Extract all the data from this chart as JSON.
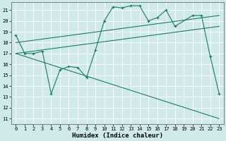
{
  "xlabel": "Humidex (Indice chaleur)",
  "bg_color": "#d0eaea",
  "grid_color": "#ffffff",
  "line_color": "#1a7a6a",
  "xlim": [
    -0.5,
    23.5
  ],
  "ylim": [
    10.5,
    21.7
  ],
  "yticks": [
    11,
    12,
    13,
    14,
    15,
    16,
    17,
    18,
    19,
    20,
    21
  ],
  "xticks": [
    0,
    1,
    2,
    3,
    4,
    5,
    6,
    7,
    8,
    9,
    10,
    11,
    12,
    13,
    14,
    15,
    16,
    17,
    18,
    19,
    20,
    21,
    22,
    23
  ],
  "xlabel_fontsize": 6.5,
  "tick_fontsize": 5.0,
  "series": [
    {
      "x": [
        0,
        1,
        2,
        3,
        4,
        5,
        6,
        7,
        8,
        9,
        10,
        11,
        12,
        13,
        14,
        15,
        16,
        17,
        18,
        20,
        21,
        22,
        23
      ],
      "y": [
        18.7,
        17.0,
        17.0,
        17.2,
        13.3,
        15.5,
        15.8,
        15.7,
        14.8,
        17.3,
        20.0,
        21.3,
        21.2,
        21.4,
        21.4,
        20.0,
        20.3,
        21.0,
        19.5,
        20.5,
        20.5,
        16.7,
        13.3
      ],
      "has_marker": true
    },
    {
      "x": [
        0,
        23
      ],
      "y": [
        17.0,
        19.5
      ],
      "has_marker": false
    },
    {
      "x": [
        0,
        23
      ],
      "y": [
        18.0,
        20.5
      ],
      "has_marker": false
    },
    {
      "x": [
        0,
        23
      ],
      "y": [
        17.0,
        11.0
      ],
      "has_marker": false
    }
  ]
}
